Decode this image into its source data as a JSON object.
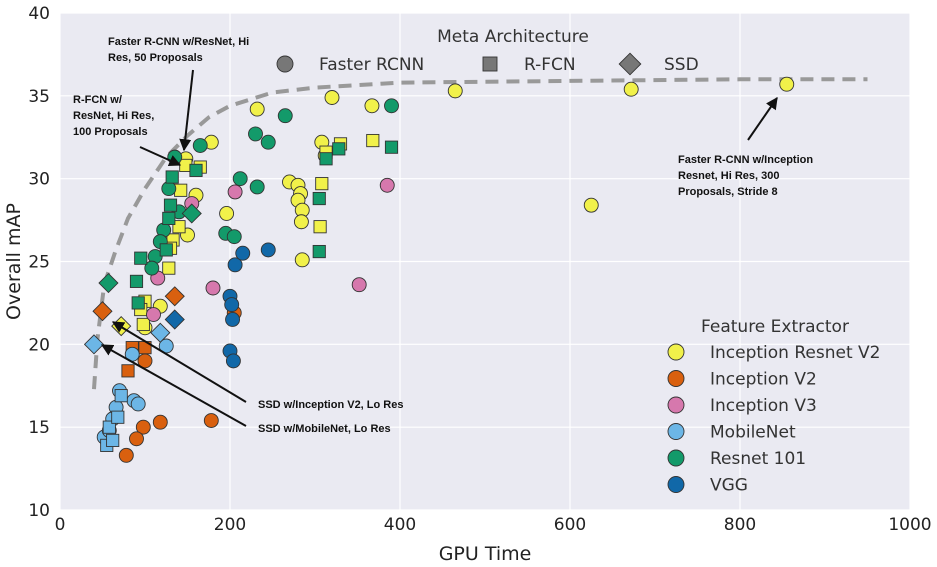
{
  "chart_data": {
    "type": "scatter",
    "xlabel": "GPU Time",
    "ylabel": "Overall mAP",
    "xlim": [
      0,
      1000
    ],
    "ylim": [
      10,
      40
    ],
    "xticks": [
      "0",
      "200",
      "400",
      "600",
      "800",
      "1000"
    ],
    "yticks": [
      "10",
      "15",
      "20",
      "25",
      "30",
      "35",
      "40"
    ],
    "grid": true,
    "legend_meta": {
      "title": "Meta Architecture",
      "placement": "top",
      "items": [
        {
          "label": "Faster RCNN",
          "shape": "circle"
        },
        {
          "label": "R-FCN",
          "shape": "square"
        },
        {
          "label": "SSD",
          "shape": "diamond"
        }
      ]
    },
    "legend_feature": {
      "title": "Feature Extractor",
      "placement": "right",
      "items": [
        {
          "label": "Inception Resnet V2",
          "color": "#f1f14a"
        },
        {
          "label": "Inception V2",
          "color": "#d9600f"
        },
        {
          "label": "Inception V3",
          "color": "#d678ad"
        },
        {
          "label": "MobileNet",
          "color": "#6cb6e6"
        },
        {
          "label": "Resnet 101",
          "color": "#139a6a"
        },
        {
          "label": "VGG",
          "color": "#1168a8"
        }
      ]
    },
    "frontier": [
      [
        40,
        17.3
      ],
      [
        44,
        20.3
      ],
      [
        52,
        23.6
      ],
      [
        65,
        25.6
      ],
      [
        80,
        27.6
      ],
      [
        100,
        29.4
      ],
      [
        125,
        31.3
      ],
      [
        150,
        32.6
      ],
      [
        175,
        33.7
      ],
      [
        200,
        34.4
      ],
      [
        250,
        35.2
      ],
      [
        300,
        35.5
      ],
      [
        400,
        35.8
      ],
      [
        600,
        35.9
      ],
      [
        800,
        36.0
      ],
      [
        950,
        36.0
      ]
    ],
    "points": [
      {
        "x": 855,
        "y": 35.7,
        "fe": "Inception Resnet V2",
        "arch": "Faster RCNN"
      },
      {
        "x": 672,
        "y": 35.4,
        "fe": "Inception Resnet V2",
        "arch": "Faster RCNN"
      },
      {
        "x": 465,
        "y": 35.3,
        "fe": "Inception Resnet V2",
        "arch": "Faster RCNN"
      },
      {
        "x": 625,
        "y": 28.4,
        "fe": "Inception Resnet V2",
        "arch": "Faster RCNN"
      },
      {
        "x": 320,
        "y": 34.9,
        "fe": "Inception Resnet V2",
        "arch": "Faster RCNN"
      },
      {
        "x": 367,
        "y": 34.4,
        "fe": "Inception Resnet V2",
        "arch": "Faster RCNN"
      },
      {
        "x": 232,
        "y": 34.2,
        "fe": "Inception Resnet V2",
        "arch": "Faster RCNN"
      },
      {
        "x": 308,
        "y": 32.2,
        "fe": "Inception Resnet V2",
        "arch": "Faster RCNN"
      },
      {
        "x": 312,
        "y": 31.4,
        "fe": "Inception Resnet V2",
        "arch": "Faster RCNN"
      },
      {
        "x": 178,
        "y": 32.2,
        "fe": "Inception Resnet V2",
        "arch": "Faster RCNN"
      },
      {
        "x": 270,
        "y": 29.8,
        "fe": "Inception Resnet V2",
        "arch": "Faster RCNN"
      },
      {
        "x": 280,
        "y": 29.6,
        "fe": "Inception Resnet V2",
        "arch": "Faster RCNN"
      },
      {
        "x": 283,
        "y": 29.1,
        "fe": "Inception Resnet V2",
        "arch": "Faster RCNN"
      },
      {
        "x": 280,
        "y": 28.7,
        "fe": "Inception Resnet V2",
        "arch": "Faster RCNN"
      },
      {
        "x": 285,
        "y": 28.1,
        "fe": "Inception Resnet V2",
        "arch": "Faster RCNN"
      },
      {
        "x": 284,
        "y": 27.4,
        "fe": "Inception Resnet V2",
        "arch": "Faster RCNN"
      },
      {
        "x": 196,
        "y": 27.9,
        "fe": "Inception Resnet V2",
        "arch": "Faster RCNN"
      },
      {
        "x": 285,
        "y": 25.1,
        "fe": "Inception Resnet V2",
        "arch": "Faster RCNN"
      },
      {
        "x": 148,
        "y": 31.2,
        "fe": "Inception Resnet V2",
        "arch": "Faster RCNN"
      },
      {
        "x": 150,
        "y": 26.6,
        "fe": "Inception Resnet V2",
        "arch": "Faster RCNN"
      },
      {
        "x": 160,
        "y": 29.0,
        "fe": "Inception Resnet V2",
        "arch": "Faster RCNN"
      },
      {
        "x": 118,
        "y": 22.3,
        "fe": "Inception Resnet V2",
        "arch": "Faster RCNN"
      },
      {
        "x": 100,
        "y": 21.0,
        "fe": "Inception Resnet V2",
        "arch": "Faster RCNN"
      },
      {
        "x": 308,
        "y": 29.7,
        "fe": "Inception Resnet V2",
        "arch": "R-FCN"
      },
      {
        "x": 306,
        "y": 27.1,
        "fe": "Inception Resnet V2",
        "arch": "R-FCN"
      },
      {
        "x": 330,
        "y": 32.1,
        "fe": "Inception Resnet V2",
        "arch": "R-FCN"
      },
      {
        "x": 368,
        "y": 32.3,
        "fe": "Inception Resnet V2",
        "arch": "R-FCN"
      },
      {
        "x": 313,
        "y": 31.6,
        "fe": "Inception Resnet V2",
        "arch": "R-FCN"
      },
      {
        "x": 148,
        "y": 30.8,
        "fe": "Inception Resnet V2",
        "arch": "R-FCN"
      },
      {
        "x": 165,
        "y": 30.7,
        "fe": "Inception Resnet V2",
        "arch": "R-FCN"
      },
      {
        "x": 142,
        "y": 29.3,
        "fe": "Inception Resnet V2",
        "arch": "R-FCN"
      },
      {
        "x": 140,
        "y": 27.1,
        "fe": "Inception Resnet V2",
        "arch": "R-FCN"
      },
      {
        "x": 133,
        "y": 26.3,
        "fe": "Inception Resnet V2",
        "arch": "R-FCN"
      },
      {
        "x": 130,
        "y": 25.8,
        "fe": "Inception Resnet V2",
        "arch": "R-FCN"
      },
      {
        "x": 128,
        "y": 24.6,
        "fe": "Inception Resnet V2",
        "arch": "R-FCN"
      },
      {
        "x": 100,
        "y": 22.6,
        "fe": "Inception Resnet V2",
        "arch": "R-FCN"
      },
      {
        "x": 95,
        "y": 22.1,
        "fe": "Inception Resnet V2",
        "arch": "R-FCN"
      },
      {
        "x": 98,
        "y": 21.2,
        "fe": "Inception Resnet V2",
        "arch": "R-FCN"
      },
      {
        "x": 72,
        "y": 21.1,
        "fe": "Inception Resnet V2",
        "arch": "SSD"
      },
      {
        "x": 178,
        "y": 15.4,
        "fe": "Inception V2",
        "arch": "Faster RCNN"
      },
      {
        "x": 205,
        "y": 21.9,
        "fe": "Inception V2",
        "arch": "Faster RCNN"
      },
      {
        "x": 118,
        "y": 15.3,
        "fe": "Inception V2",
        "arch": "Faster RCNN"
      },
      {
        "x": 98,
        "y": 15.0,
        "fe": "Inception V2",
        "arch": "Faster RCNN"
      },
      {
        "x": 90,
        "y": 14.3,
        "fe": "Inception V2",
        "arch": "Faster RCNN"
      },
      {
        "x": 78,
        "y": 13.3,
        "fe": "Inception V2",
        "arch": "Faster RCNN"
      },
      {
        "x": 100,
        "y": 19.0,
        "fe": "Inception V2",
        "arch": "Faster RCNN"
      },
      {
        "x": 85,
        "y": 19.8,
        "fe": "Inception V2",
        "arch": "R-FCN"
      },
      {
        "x": 100,
        "y": 19.8,
        "fe": "Inception V2",
        "arch": "R-FCN"
      },
      {
        "x": 80,
        "y": 18.4,
        "fe": "Inception V2",
        "arch": "R-FCN"
      },
      {
        "x": 50,
        "y": 22.0,
        "fe": "Inception V2",
        "arch": "SSD"
      },
      {
        "x": 135,
        "y": 22.9,
        "fe": "Inception V2",
        "arch": "SSD"
      },
      {
        "x": 385,
        "y": 29.6,
        "fe": "Inception V3",
        "arch": "Faster RCNN"
      },
      {
        "x": 352,
        "y": 23.6,
        "fe": "Inception V3",
        "arch": "Faster RCNN"
      },
      {
        "x": 206,
        "y": 29.2,
        "fe": "Inception V3",
        "arch": "Faster RCNN"
      },
      {
        "x": 180,
        "y": 23.4,
        "fe": "Inception V3",
        "arch": "Faster RCNN"
      },
      {
        "x": 155,
        "y": 28.5,
        "fe": "Inception V3",
        "arch": "Faster RCNN"
      },
      {
        "x": 115,
        "y": 24.0,
        "fe": "Inception V3",
        "arch": "Faster RCNN"
      },
      {
        "x": 110,
        "y": 21.8,
        "fe": "Inception V3",
        "arch": "Faster RCNN"
      },
      {
        "x": 52,
        "y": 14.4,
        "fe": "MobileNet",
        "arch": "Faster RCNN"
      },
      {
        "x": 58,
        "y": 14.8,
        "fe": "MobileNet",
        "arch": "Faster RCNN"
      },
      {
        "x": 62,
        "y": 15.5,
        "fe": "MobileNet",
        "arch": "Faster RCNN"
      },
      {
        "x": 66,
        "y": 16.2,
        "fe": "MobileNet",
        "arch": "Faster RCNN"
      },
      {
        "x": 70,
        "y": 17.2,
        "fe": "MobileNet",
        "arch": "Faster RCNN"
      },
      {
        "x": 87,
        "y": 16.6,
        "fe": "MobileNet",
        "arch": "Faster RCNN"
      },
      {
        "x": 92,
        "y": 16.4,
        "fe": "MobileNet",
        "arch": "Faster RCNN"
      },
      {
        "x": 125,
        "y": 19.9,
        "fe": "MobileNet",
        "arch": "Faster RCNN"
      },
      {
        "x": 85,
        "y": 19.4,
        "fe": "MobileNet",
        "arch": "Faster RCNN"
      },
      {
        "x": 55,
        "y": 13.9,
        "fe": "MobileNet",
        "arch": "R-FCN"
      },
      {
        "x": 62,
        "y": 14.2,
        "fe": "MobileNet",
        "arch": "R-FCN"
      },
      {
        "x": 58,
        "y": 15.0,
        "fe": "MobileNet",
        "arch": "R-FCN"
      },
      {
        "x": 68,
        "y": 15.6,
        "fe": "MobileNet",
        "arch": "R-FCN"
      },
      {
        "x": 72,
        "y": 16.9,
        "fe": "MobileNet",
        "arch": "R-FCN"
      },
      {
        "x": 40,
        "y": 20.0,
        "fe": "MobileNet",
        "arch": "SSD"
      },
      {
        "x": 118,
        "y": 20.7,
        "fe": "MobileNet",
        "arch": "SSD"
      },
      {
        "x": 265,
        "y": 33.8,
        "fe": "Resnet 101",
        "arch": "Faster RCNN"
      },
      {
        "x": 390,
        "y": 34.4,
        "fe": "Resnet 101",
        "arch": "Faster RCNN"
      },
      {
        "x": 230,
        "y": 32.7,
        "fe": "Resnet 101",
        "arch": "Faster RCNN"
      },
      {
        "x": 245,
        "y": 32.2,
        "fe": "Resnet 101",
        "arch": "Faster RCNN"
      },
      {
        "x": 165,
        "y": 32.0,
        "fe": "Resnet 101",
        "arch": "Faster RCNN"
      },
      {
        "x": 212,
        "y": 30.0,
        "fe": "Resnet 101",
        "arch": "Faster RCNN"
      },
      {
        "x": 232,
        "y": 29.5,
        "fe": "Resnet 101",
        "arch": "Faster RCNN"
      },
      {
        "x": 135,
        "y": 31.3,
        "fe": "Resnet 101",
        "arch": "Faster RCNN"
      },
      {
        "x": 128,
        "y": 29.4,
        "fe": "Resnet 101",
        "arch": "Faster RCNN"
      },
      {
        "x": 140,
        "y": 28.0,
        "fe": "Resnet 101",
        "arch": "Faster RCNN"
      },
      {
        "x": 122,
        "y": 26.9,
        "fe": "Resnet 101",
        "arch": "Faster RCNN"
      },
      {
        "x": 118,
        "y": 26.2,
        "fe": "Resnet 101",
        "arch": "Faster RCNN"
      },
      {
        "x": 112,
        "y": 25.3,
        "fe": "Resnet 101",
        "arch": "Faster RCNN"
      },
      {
        "x": 108,
        "y": 24.6,
        "fe": "Resnet 101",
        "arch": "Faster RCNN"
      },
      {
        "x": 195,
        "y": 26.7,
        "fe": "Resnet 101",
        "arch": "Faster RCNN"
      },
      {
        "x": 205,
        "y": 26.5,
        "fe": "Resnet 101",
        "arch": "Faster RCNN"
      },
      {
        "x": 390,
        "y": 31.9,
        "fe": "Resnet 101",
        "arch": "R-FCN"
      },
      {
        "x": 328,
        "y": 31.8,
        "fe": "Resnet 101",
        "arch": "R-FCN"
      },
      {
        "x": 313,
        "y": 31.2,
        "fe": "Resnet 101",
        "arch": "R-FCN"
      },
      {
        "x": 305,
        "y": 28.8,
        "fe": "Resnet 101",
        "arch": "R-FCN"
      },
      {
        "x": 305,
        "y": 25.6,
        "fe": "Resnet 101",
        "arch": "R-FCN"
      },
      {
        "x": 160,
        "y": 30.5,
        "fe": "Resnet 101",
        "arch": "R-FCN"
      },
      {
        "x": 132,
        "y": 30.1,
        "fe": "Resnet 101",
        "arch": "R-FCN"
      },
      {
        "x": 130,
        "y": 28.4,
        "fe": "Resnet 101",
        "arch": "R-FCN"
      },
      {
        "x": 128,
        "y": 27.6,
        "fe": "Resnet 101",
        "arch": "R-FCN"
      },
      {
        "x": 125,
        "y": 25.7,
        "fe": "Resnet 101",
        "arch": "R-FCN"
      },
      {
        "x": 95,
        "y": 25.2,
        "fe": "Resnet 101",
        "arch": "R-FCN"
      },
      {
        "x": 90,
        "y": 23.8,
        "fe": "Resnet 101",
        "arch": "R-FCN"
      },
      {
        "x": 92,
        "y": 22.5,
        "fe": "Resnet 101",
        "arch": "R-FCN"
      },
      {
        "x": 57,
        "y": 23.7,
        "fe": "Resnet 101",
        "arch": "SSD"
      },
      {
        "x": 155,
        "y": 27.9,
        "fe": "Resnet 101",
        "arch": "SSD"
      },
      {
        "x": 200,
        "y": 22.9,
        "fe": "VGG",
        "arch": "Faster RCNN"
      },
      {
        "x": 202,
        "y": 22.4,
        "fe": "VGG",
        "arch": "Faster RCNN"
      },
      {
        "x": 203,
        "y": 21.5,
        "fe": "VGG",
        "arch": "Faster RCNN"
      },
      {
        "x": 200,
        "y": 19.6,
        "fe": "VGG",
        "arch": "Faster RCNN"
      },
      {
        "x": 204,
        "y": 19.0,
        "fe": "VGG",
        "arch": "Faster RCNN"
      },
      {
        "x": 206,
        "y": 24.8,
        "fe": "VGG",
        "arch": "Faster RCNN"
      },
      {
        "x": 215,
        "y": 25.5,
        "fe": "VGG",
        "arch": "Faster RCNN"
      },
      {
        "x": 245,
        "y": 25.7,
        "fe": "VGG",
        "arch": "Faster RCNN"
      },
      {
        "x": 135,
        "y": 21.5,
        "fe": "VGG",
        "arch": "SSD"
      }
    ],
    "annotations": [
      {
        "lines": [
          "Faster R-CNN w/ResNet, Hi",
          "Res, 50 Proposals"
        ],
        "anchor": "top-center-left"
      },
      {
        "lines": [
          "R-FCN w/",
          "ResNet, Hi Res,",
          "100 Proposals"
        ],
        "anchor": "left"
      },
      {
        "lines": [
          "Faster R-CNN w/Inception",
          "Resnet, Hi Res, 300",
          "Proposals, Stride 8"
        ],
        "anchor": "right"
      },
      {
        "lines": [
          "SSD w/Inception V2, Lo Res"
        ],
        "anchor": "bottom-middle"
      },
      {
        "lines": [
          "SSD w/MobileNet, Lo Res"
        ],
        "anchor": "bottom-middle"
      }
    ]
  }
}
